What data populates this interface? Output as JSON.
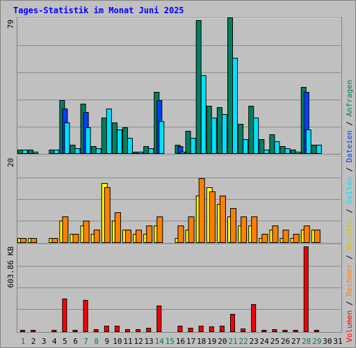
{
  "chart_data": {
    "type": "bar",
    "title": "Tages-Statistik im Monat Juni 2025",
    "days": [
      "1",
      "2",
      "3",
      "4",
      "5",
      "6",
      "7",
      "8",
      "9",
      "10",
      "11",
      "12",
      "13",
      "14",
      "15",
      "16",
      "17",
      "18",
      "19",
      "20",
      "21",
      "22",
      "23",
      "24",
      "25",
      "26",
      "27",
      "28",
      "29",
      "30",
      "31"
    ],
    "weekend_days": [
      "1",
      "7",
      "8",
      "14",
      "15",
      "21",
      "22",
      "28",
      "29"
    ],
    "panels": [
      {
        "id": "requests",
        "ylabel": "79",
        "ylim": [
          0,
          79
        ],
        "series": [
          {
            "name": "Anfragen",
            "color": "#008060",
            "values": [
              2,
              2,
              0,
              2,
              31,
              5,
              29,
              4,
              21,
              18,
              15,
              1,
              4,
              36,
              0,
              5,
              13,
              78,
              28,
              27,
              80,
              17,
              28,
              8,
              11,
              4,
              2,
              39,
              5,
              0,
              0
            ]
          },
          {
            "name": "Dateien",
            "color": "#0040ff",
            "values": [
              0,
              0,
              0,
              0,
              26,
              0,
              24,
              0,
              0,
              0,
              0,
              0,
              0,
              31,
              0,
              4,
              0,
              0,
              0,
              0,
              0,
              0,
              0,
              0,
              0,
              0,
              0,
              36,
              0,
              0,
              0
            ]
          },
          {
            "name": "Seiten",
            "color": "#00e0ff",
            "values": [
              2,
              1,
              0,
              2,
              18,
              3,
              15,
              3,
              26,
              14,
              9,
              1,
              3,
              19,
              0,
              1,
              9,
              46,
              21,
              23,
              56,
              8,
              21,
              2,
              7,
              3,
              1,
              14,
              5,
              0,
              0
            ]
          }
        ]
      },
      {
        "id": "visits",
        "ylabel": "20",
        "ylim": [
          0,
          20
        ],
        "series": [
          {
            "name": "Besuche",
            "color": "#ffff00",
            "values": [
              1,
              1,
              0,
              1,
              5,
              2,
              4,
              2,
              14,
              5,
              3,
              2,
              2,
              4,
              0,
              1,
              3,
              11,
              13,
              9,
              6,
              4,
              4,
              1,
              3,
              1,
              1,
              3,
              3,
              0,
              0
            ]
          },
          {
            "name": "Rechner",
            "color": "#ff8000",
            "values": [
              1,
              1,
              0,
              1,
              6,
              2,
              5,
              3,
              13,
              7,
              3,
              3,
              4,
              6,
              0,
              4,
              6,
              15,
              12,
              11,
              8,
              6,
              6,
              2,
              4,
              3,
              2,
              4,
              3,
              0,
              0
            ]
          }
        ]
      },
      {
        "id": "volume",
        "ylabel": "603.86 KB",
        "ylim": [
          0,
          603.86
        ],
        "series": [
          {
            "name": "Volumen",
            "color": "#ff0000",
            "values": [
              10,
              10,
              0,
              10,
              230,
              10,
              220,
              15,
              40,
              40,
              15,
              15,
              25,
              180,
              0,
              40,
              25,
              40,
              35,
              40,
              125,
              20,
              190,
              10,
              15,
              10,
              10,
              600,
              10,
              0,
              0
            ]
          }
        ]
      }
    ],
    "legend": [
      {
        "name": "Volumen",
        "color": "#ff0000"
      },
      {
        "sep": "/"
      },
      {
        "name": "Rechner",
        "color": "#ff8000"
      },
      {
        "sep": "/"
      },
      {
        "name": "Besuche",
        "color": "#ffff00"
      },
      {
        "sep": "/"
      },
      {
        "name": "Seiten",
        "color": "#00e0ff"
      },
      {
        "sep": "/"
      },
      {
        "name": "Dateien",
        "color": "#0040ff"
      },
      {
        "sep": "/"
      },
      {
        "name": "Anfragen",
        "color": "#008060"
      }
    ]
  }
}
